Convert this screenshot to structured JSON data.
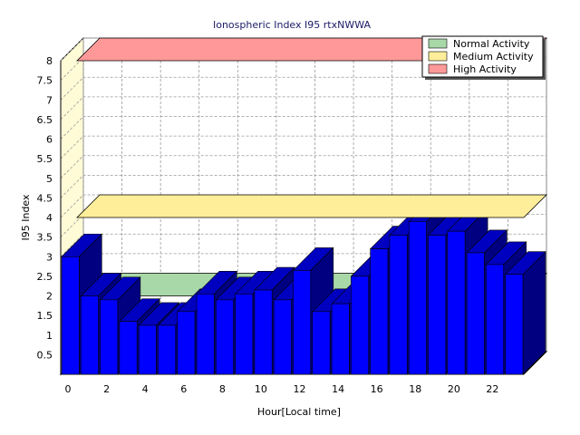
{
  "chart_data": {
    "type": "bar",
    "title": "Ionospheric Index I95 rtxNWWA",
    "xlabel": "Hour[Local time]",
    "ylabel": "I95 Index",
    "ylim": [
      0,
      8
    ],
    "yticks": [
      "0.5",
      "1",
      "1.5",
      "2",
      "2.5",
      "3",
      "3.5",
      "4",
      "4.5",
      "5",
      "5.5",
      "6",
      "6.5",
      "7",
      "7.5",
      "8"
    ],
    "xticks": [
      "0",
      "2",
      "4",
      "6",
      "8",
      "10",
      "12",
      "14",
      "16",
      "18",
      "20",
      "22"
    ],
    "x": [
      0,
      1,
      2,
      3,
      4,
      5,
      6,
      7,
      8,
      9,
      10,
      11,
      12,
      13,
      14,
      15,
      16,
      17,
      18,
      19,
      20,
      21,
      22,
      23
    ],
    "values": [
      3.0,
      2.0,
      1.9,
      1.35,
      1.25,
      1.25,
      1.6,
      2.05,
      1.9,
      2.05,
      2.15,
      1.9,
      2.65,
      1.6,
      1.8,
      2.5,
      3.2,
      3.55,
      3.9,
      3.55,
      3.65,
      3.1,
      2.8,
      2.55
    ],
    "bar_color": "#0000ff",
    "bar_side_color": "#000080",
    "grid": true,
    "legend_position": "top-right",
    "activity_bands": [
      {
        "name": "Normal Activity",
        "level": 2.0,
        "color": "#a8d8a8"
      },
      {
        "name": "Medium Activity",
        "level": 4.0,
        "color": "#ffee99"
      },
      {
        "name": "High Activity",
        "level": 8.0,
        "color": "#ff9999"
      }
    ]
  }
}
